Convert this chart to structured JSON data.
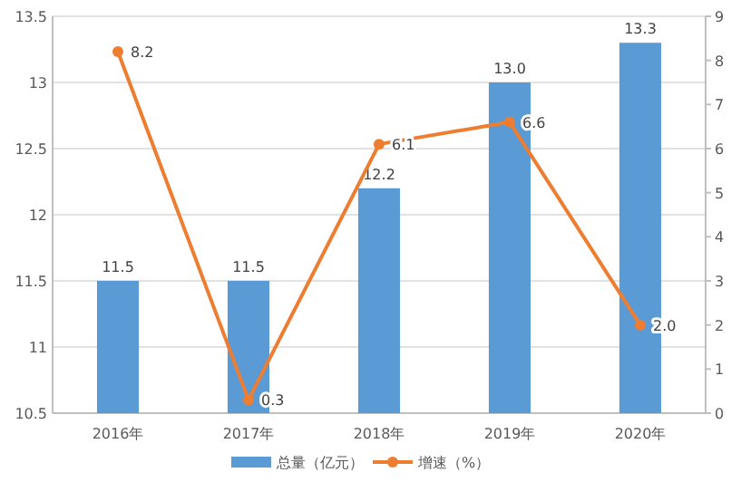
{
  "chart_data": {
    "type": "bar",
    "categories": [
      "2016年",
      "2017年",
      "2018年",
      "2019年",
      "2020年"
    ],
    "series": [
      {
        "name": "总量（亿元）",
        "color": "#5b9bd5",
        "values": [
          11.5,
          11.5,
          12.2,
          13.0,
          13.3
        ],
        "value_labels": [
          "11.5",
          "11.5",
          "12.2",
          "13.0",
          "13.3"
        ]
      },
      {
        "name": "增速（%）",
        "type": "line",
        "axis": "y2",
        "color": "#ed7d31",
        "marker": "circle",
        "values": [
          8.2,
          0.3,
          6.1,
          6.6,
          2.0
        ],
        "value_labels": [
          "8.2",
          "0.3",
          "6.1",
          "6.6",
          "2.0"
        ]
      }
    ],
    "ylim": [
      10.5,
      13.5
    ],
    "yticks": [
      10.5,
      11,
      11.5,
      12,
      12.5,
      13,
      13.5
    ],
    "y2lim": [
      0,
      9
    ],
    "y2ticks": [
      0,
      1,
      2,
      3,
      4,
      5,
      6,
      7,
      8,
      9
    ],
    "grid": "y",
    "legend": "bottom"
  }
}
